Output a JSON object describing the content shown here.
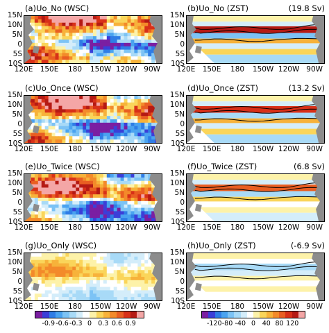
{
  "panels": [
    {
      "id": "a",
      "title": "(a)Uo_No (WSC)",
      "transport": "",
      "kind": "wsc"
    },
    {
      "id": "b",
      "title": "(b)Uo_No (ZST)",
      "transport": "(19.8 Sv)",
      "kind": "zst"
    },
    {
      "id": "c",
      "title": "(c)Uo_Once (WSC)",
      "transport": "",
      "kind": "wsc"
    },
    {
      "id": "d",
      "title": "(d)Uo_Once (ZST)",
      "transport": "(13.2 Sv)",
      "kind": "zst"
    },
    {
      "id": "e",
      "title": "(e)Uo_Twice (WSC)",
      "transport": "",
      "kind": "wsc"
    },
    {
      "id": "f",
      "title": "(f)Uo_Twice (ZST)",
      "transport": "(6.8 Sv)",
      "kind": "zst"
    },
    {
      "id": "g",
      "title": "(g)Uo_Only (WSC)",
      "transport": "",
      "kind": "wsc"
    },
    {
      "id": "h",
      "title": "(h)Uo_Only (ZST)",
      "transport": "(-6.9 Sv)",
      "kind": "zst"
    }
  ],
  "lat_ticks": [
    "15N",
    "10N",
    "5N",
    "0",
    "5S",
    "10S"
  ],
  "lon_ticks": [
    "120E",
    "150E",
    "180",
    "150W",
    "120W",
    "90W"
  ],
  "colorbar_wsc": {
    "labels": [
      "-0.9",
      "-0.6",
      "-0.3",
      "0",
      "0.3",
      "0.6",
      "0.9"
    ],
    "colors": [
      "#7b1fa2",
      "#3b3fd8",
      "#2f7de6",
      "#4aa3f0",
      "#7cc3f5",
      "#a8daf7",
      "#d4edfa",
      "#ffffff",
      "#fdf2a9",
      "#fad55a",
      "#f7b23a",
      "#f38a2a",
      "#e95e22",
      "#d83018",
      "#b51a14",
      "#f4a6a6"
    ]
  },
  "colorbar_zst": {
    "labels": [
      "-120",
      "-80",
      "-40",
      "0",
      "40",
      "80",
      "120"
    ],
    "colors": [
      "#7b1fa2",
      "#3b3fd8",
      "#2f7de6",
      "#4aa3f0",
      "#7cc3f5",
      "#a8daf7",
      "#d4edfa",
      "#ffffff",
      "#fdf2a9",
      "#fad55a",
      "#f7b23a",
      "#f38a2a",
      "#e95e22",
      "#d83018",
      "#b51a14",
      "#f4a6a6"
    ]
  },
  "colors": {
    "land": "#8c8c8c",
    "frame": "#000000"
  }
}
